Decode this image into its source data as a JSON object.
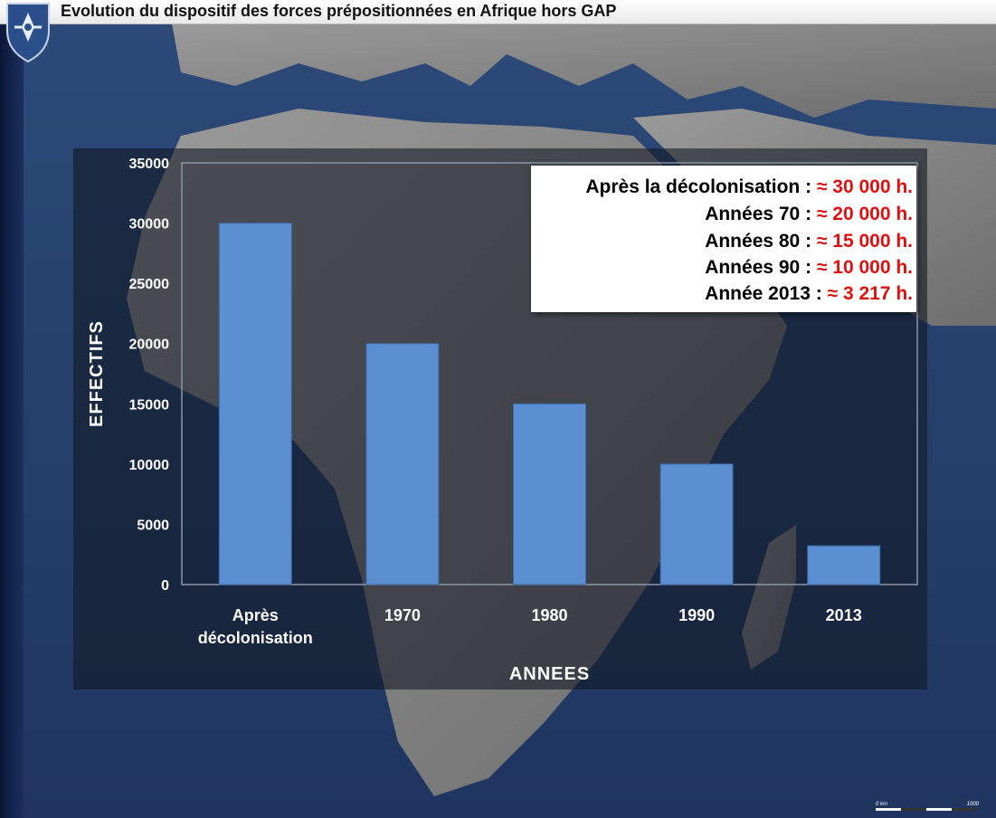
{
  "header": {
    "title": "Evolution du dispositif des forces prépositionnées en Afrique hors GAP",
    "logo_icon": "emblem-shield-icon"
  },
  "legend_box": {
    "rows": [
      {
        "label": "Après la décolonisation : ",
        "value": "≈ 30 000 h."
      },
      {
        "label": "Années 70 : ",
        "value": "≈ 20 000 h."
      },
      {
        "label": "Années 80 : ",
        "value": "≈ 15 000 h."
      },
      {
        "label": "Années 90 : ",
        "value": "≈ 10 000 h."
      },
      {
        "label": "Année 2013 : ",
        "value": "≈ 3 217 h."
      }
    ]
  },
  "map": {
    "scale_start": "0 km",
    "scale_end": "1000"
  },
  "colors": {
    "bar": "#5b8fd2",
    "bar_edge": "#3a68a8",
    "value_highlight": "#e01010",
    "ocean": "#25406a",
    "land": "#8a8a8a"
  },
  "chart_data": {
    "type": "bar",
    "categories": [
      [
        "Après",
        "décolonisation"
      ],
      [
        "1970"
      ],
      [
        "1980"
      ],
      [
        "1990"
      ],
      [
        "2013"
      ]
    ],
    "values": [
      30000,
      20000,
      15000,
      10000,
      3217
    ],
    "xlabel": "ANNEES",
    "ylabel": "EFFECTIFS",
    "ylim": [
      0,
      35000
    ],
    "yticks": [
      0,
      5000,
      10000,
      15000,
      20000,
      25000,
      30000,
      35000
    ],
    "grid": false
  }
}
